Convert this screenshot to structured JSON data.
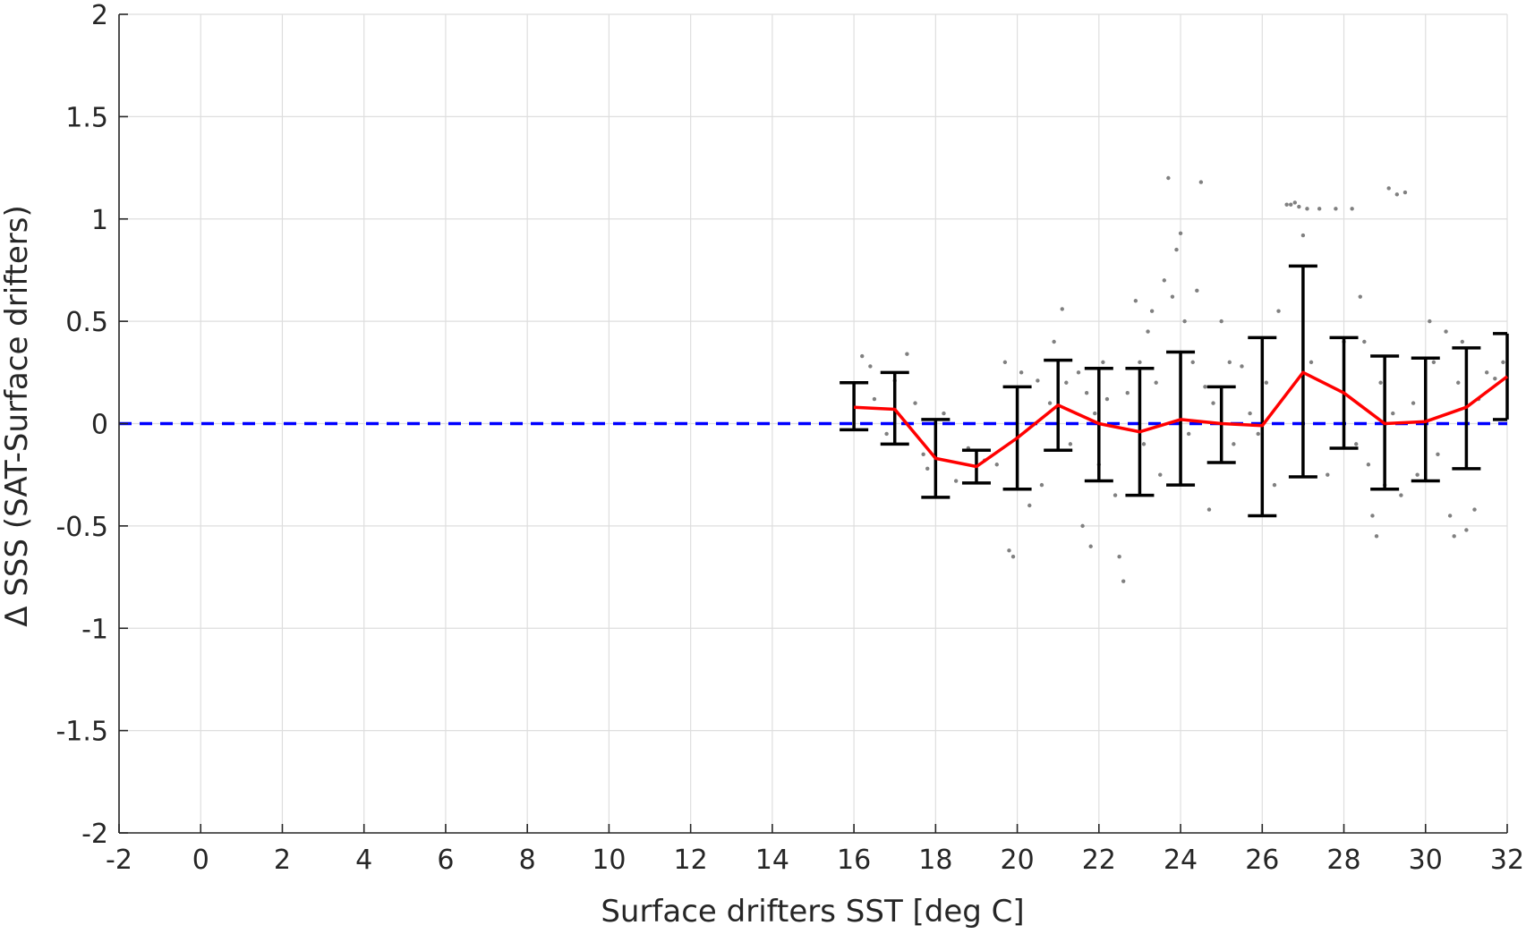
{
  "chart_data": {
    "type": "scatter",
    "title": "",
    "xlabel": "Surface drifters SST [deg C]",
    "ylabel": "Δ SSS (SAT-Surface drifters)",
    "xlim": [
      -2,
      32
    ],
    "ylim": [
      -2,
      2
    ],
    "xticks": [
      -2,
      0,
      2,
      4,
      6,
      8,
      10,
      12,
      14,
      16,
      18,
      20,
      22,
      24,
      26,
      28,
      30,
      32
    ],
    "yticks": [
      -2,
      -1.5,
      -1,
      -0.5,
      0,
      0.5,
      1,
      1.5,
      2
    ],
    "xtick_labels": [
      "-2",
      "0",
      "2",
      "4",
      "6",
      "8",
      "10",
      "12",
      "14",
      "16",
      "18",
      "20",
      "22",
      "24",
      "26",
      "28",
      "30",
      "32"
    ],
    "ytick_labels": [
      "-2",
      "-1.5",
      "-1",
      "-0.5",
      "0",
      "0.5",
      "1",
      "1.5",
      "2"
    ],
    "grid": true,
    "legend": "none",
    "series": [
      {
        "kind": "errorbar",
        "x": [
          16,
          17,
          18,
          19,
          20,
          21,
          22,
          23,
          24,
          25,
          26,
          27,
          28,
          29,
          30,
          31,
          32
        ],
        "y": [
          0.08,
          0.07,
          -0.17,
          -0.21,
          -0.07,
          0.09,
          0.0,
          -0.04,
          0.02,
          0.0,
          -0.01,
          0.25,
          0.15,
          0.0,
          0.01,
          0.08,
          0.23
        ],
        "lower": [
          -0.03,
          -0.1,
          -0.36,
          -0.29,
          -0.32,
          -0.13,
          -0.28,
          -0.35,
          -0.3,
          -0.19,
          -0.45,
          -0.26,
          -0.12,
          -0.32,
          -0.28,
          -0.22,
          0.02
        ],
        "upper": [
          0.2,
          0.25,
          0.02,
          -0.13,
          0.18,
          0.31,
          0.27,
          0.27,
          0.35,
          0.18,
          0.42,
          0.77,
          0.42,
          0.33,
          0.32,
          0.37,
          0.44
        ],
        "color": "#000000"
      },
      {
        "kind": "mean-line",
        "x": [
          16,
          17,
          18,
          19,
          20,
          21,
          22,
          23,
          24,
          25,
          26,
          27,
          28,
          29,
          30,
          31,
          32
        ],
        "y": [
          0.08,
          0.07,
          -0.17,
          -0.21,
          -0.07,
          0.09,
          0.0,
          -0.04,
          0.02,
          0.0,
          -0.01,
          0.25,
          0.15,
          0.0,
          0.01,
          0.08,
          0.23
        ],
        "color": "#ff0000"
      },
      {
        "kind": "reference-line",
        "y": 0,
        "style": "dashed",
        "color": "#0000ff"
      },
      {
        "kind": "scatter-points",
        "color": "#808080",
        "points": [
          [
            16.2,
            0.33
          ],
          [
            16.4,
            0.28
          ],
          [
            16.5,
            0.12
          ],
          [
            16.8,
            -0.05
          ],
          [
            17.0,
            0.21
          ],
          [
            17.3,
            0.34
          ],
          [
            17.5,
            0.1
          ],
          [
            17.7,
            -0.15
          ],
          [
            17.8,
            -0.22
          ],
          [
            18.2,
            0.05
          ],
          [
            18.5,
            -0.28
          ],
          [
            18.8,
            -0.12
          ],
          [
            19.2,
            -0.18
          ],
          [
            19.5,
            -0.2
          ],
          [
            19.7,
            0.3
          ],
          [
            19.8,
            -0.62
          ],
          [
            19.9,
            -0.65
          ],
          [
            20.1,
            0.25
          ],
          [
            20.3,
            -0.4
          ],
          [
            20.5,
            0.21
          ],
          [
            20.6,
            -0.3
          ],
          [
            20.8,
            0.1
          ],
          [
            20.9,
            0.4
          ],
          [
            21.1,
            0.56
          ],
          [
            21.2,
            0.2
          ],
          [
            21.3,
            -0.1
          ],
          [
            21.5,
            0.25
          ],
          [
            21.6,
            -0.5
          ],
          [
            21.7,
            0.15
          ],
          [
            21.8,
            -0.6
          ],
          [
            21.9,
            0.05
          ],
          [
            22.0,
            -0.2
          ],
          [
            22.1,
            0.3
          ],
          [
            22.2,
            0.12
          ],
          [
            22.4,
            -0.35
          ],
          [
            22.5,
            -0.65
          ],
          [
            22.6,
            -0.77
          ],
          [
            22.7,
            0.15
          ],
          [
            22.9,
            0.6
          ],
          [
            23.0,
            0.3
          ],
          [
            23.1,
            -0.1
          ],
          [
            23.2,
            0.45
          ],
          [
            23.3,
            0.55
          ],
          [
            23.4,
            0.2
          ],
          [
            23.5,
            -0.25
          ],
          [
            23.6,
            0.7
          ],
          [
            23.7,
            1.2
          ],
          [
            23.8,
            0.62
          ],
          [
            23.9,
            0.85
          ],
          [
            24.0,
            0.93
          ],
          [
            24.1,
            0.5
          ],
          [
            24.2,
            -0.05
          ],
          [
            24.3,
            0.3
          ],
          [
            24.4,
            0.65
          ],
          [
            24.5,
            1.18
          ],
          [
            24.6,
            0.18
          ],
          [
            24.7,
            -0.42
          ],
          [
            24.8,
            0.1
          ],
          [
            25.0,
            0.5
          ],
          [
            25.2,
            0.3
          ],
          [
            25.3,
            -0.1
          ],
          [
            25.5,
            0.28
          ],
          [
            25.7,
            0.05
          ],
          [
            25.9,
            -0.05
          ],
          [
            26.1,
            0.2
          ],
          [
            26.3,
            -0.3
          ],
          [
            26.4,
            0.55
          ],
          [
            26.6,
            1.07
          ],
          [
            26.7,
            1.07
          ],
          [
            26.8,
            1.08
          ],
          [
            26.9,
            1.06
          ],
          [
            27.0,
            0.92
          ],
          [
            27.1,
            1.05
          ],
          [
            27.2,
            0.3
          ],
          [
            27.4,
            1.05
          ],
          [
            27.6,
            -0.25
          ],
          [
            27.8,
            1.05
          ],
          [
            28.0,
            0.4
          ],
          [
            28.2,
            1.05
          ],
          [
            28.3,
            -0.1
          ],
          [
            28.4,
            0.62
          ],
          [
            28.5,
            0.4
          ],
          [
            28.6,
            -0.2
          ],
          [
            28.7,
            -0.45
          ],
          [
            28.8,
            -0.55
          ],
          [
            28.9,
            0.2
          ],
          [
            29.0,
            -0.3
          ],
          [
            29.1,
            1.15
          ],
          [
            29.2,
            0.05
          ],
          [
            29.3,
            1.12
          ],
          [
            29.4,
            -0.35
          ],
          [
            29.5,
            1.13
          ],
          [
            29.7,
            0.1
          ],
          [
            29.8,
            -0.25
          ],
          [
            30.1,
            0.5
          ],
          [
            30.2,
            0.3
          ],
          [
            30.3,
            -0.15
          ],
          [
            30.5,
            0.45
          ],
          [
            30.6,
            -0.45
          ],
          [
            30.7,
            -0.55
          ],
          [
            30.8,
            0.2
          ],
          [
            30.9,
            0.4
          ],
          [
            31.0,
            -0.52
          ],
          [
            31.2,
            -0.42
          ],
          [
            31.3,
            0.12
          ],
          [
            31.5,
            0.25
          ],
          [
            31.7,
            0.22
          ],
          [
            31.9,
            0.3
          ]
        ]
      }
    ]
  }
}
